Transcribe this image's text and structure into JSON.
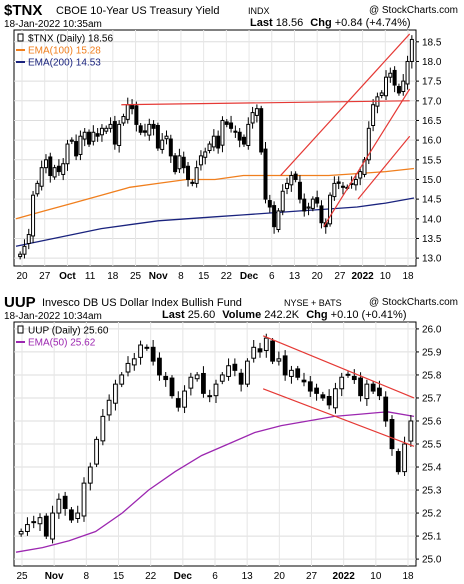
{
  "panels": [
    {
      "symbol": "$TNX",
      "name": "CBOE 10-Year US Treasury Yield",
      "exchange": "INDX",
      "date": "18-Jan-2022 10:35am",
      "watermark": "@ StockCharts.com",
      "last_label": "Last",
      "last": "18.56",
      "chg_label": "Chg",
      "chg": "+0.84 (+4.74%)",
      "legend": [
        {
          "text": "$TNX (Daily) 18.56",
          "color": "#000000",
          "kind": "marker"
        },
        {
          "text": "EMA(100) 15.28",
          "color": "#f07f1e",
          "kind": "line"
        },
        {
          "text": "EMA(200) 14.53",
          "color": "#1a237e",
          "kind": "line"
        }
      ],
      "y_ticks": [
        "18.5",
        "18.0",
        "17.5",
        "17.0",
        "16.5",
        "16.0",
        "15.5",
        "15.0",
        "14.5",
        "14.0",
        "13.5",
        "13.0"
      ],
      "x_ticks": [
        "20",
        "27",
        "Oct",
        "11",
        "18",
        "25",
        "Nov",
        "8",
        "15",
        "22",
        "Dec",
        "6",
        "13",
        "20",
        "27",
        "2022",
        "10",
        "18"
      ]
    },
    {
      "symbol": "UUP",
      "name": "Invesco DB US Dollar Index Bullish Fund",
      "exchange": "NYSE + BATS",
      "date": "18-Jan-2022 10:34am",
      "watermark": "@ StockCharts.com",
      "last_label": "Last",
      "last": "25.60",
      "volume_label": "Volume",
      "volume": "242.2K",
      "chg_label": "Chg",
      "chg": "+0.10 (+0.41%)",
      "legend": [
        {
          "text": "UUP (Daily) 25.60",
          "color": "#000000",
          "kind": "marker"
        },
        {
          "text": "EMA(50) 25.62",
          "color": "#9c27b0",
          "kind": "line"
        }
      ],
      "y_ticks": [
        "26.0",
        "25.9",
        "25.8",
        "25.7",
        "25.6",
        "25.5",
        "25.4",
        "25.3",
        "25.2",
        "25.1",
        "25.0"
      ],
      "x_ticks": [
        "25",
        "Nov",
        "8",
        "15",
        "22",
        "Dec",
        "6",
        "13",
        "20",
        "27",
        "2022",
        "10",
        "18"
      ]
    }
  ],
  "chart_data": [
    {
      "type": "candlestick",
      "title": "$TNX CBOE 10-Year US Treasury Yield INDX",
      "ylim": [
        12.8,
        18.8
      ],
      "series": [
        {
          "name": "$TNX (Daily)",
          "close": [
            13.1,
            13.3,
            13.6,
            14.6,
            14.9,
            15.3,
            15.5,
            15.1,
            15.3,
            15.2,
            15.4,
            15.9,
            16.0,
            15.6,
            16.1,
            16.2,
            15.9,
            16.2,
            16.1,
            16.3,
            16.3,
            16.4,
            15.9,
            16.4,
            16.6,
            16.9,
            16.8,
            16.4,
            16.2,
            16.2,
            16.4,
            16.3,
            15.8,
            16.0,
            16.1,
            15.6,
            15.2,
            15.6,
            15.3,
            15.0,
            14.9,
            15.3,
            15.6,
            15.7,
            15.9,
            16.1,
            15.8,
            16.5,
            16.4,
            16.3,
            16.2,
            16.0,
            15.9,
            16.4,
            16.7,
            16.8,
            15.7,
            14.5,
            14.3,
            13.8,
            14.2,
            14.7,
            14.9,
            15.1,
            15.0,
            14.5,
            14.2,
            14.3,
            14.5,
            14.4,
            13.9,
            13.8,
            14.6,
            14.9,
            14.9,
            14.8,
            14.8,
            14.9,
            15.0,
            15.2,
            15.5,
            16.3,
            16.9,
            17.1,
            17.2,
            17.6,
            17.7,
            17.4,
            17.2,
            17.5,
            18.0,
            18.56
          ]
        },
        {
          "name": "EMA(100)",
          "values": [
            14.0,
            14.2,
            14.4,
            14.6,
            14.8,
            14.9,
            15.0,
            15.0,
            15.1,
            15.1,
            15.1,
            15.1,
            15.15,
            15.2,
            15.28
          ]
        },
        {
          "name": "EMA(200)",
          "values": [
            13.3,
            13.45,
            13.6,
            13.75,
            13.85,
            13.95,
            14.0,
            14.05,
            14.1,
            14.15,
            14.2,
            14.25,
            14.3,
            14.4,
            14.53
          ]
        }
      ]
    },
    {
      "type": "candlestick",
      "title": "UUP Invesco DB US Dollar Index Bullish Fund NYSE + BATS",
      "ylim": [
        24.97,
        26.03
      ],
      "series": [
        {
          "name": "UUP (Daily)",
          "close": [
            25.12,
            25.15,
            25.16,
            25.18,
            25.1,
            25.2,
            25.26,
            25.22,
            25.17,
            25.2,
            25.33,
            25.4,
            25.52,
            25.62,
            25.69,
            25.76,
            25.8,
            25.85,
            25.87,
            25.93,
            25.92,
            25.86,
            25.8,
            25.78,
            25.71,
            25.66,
            25.73,
            25.79,
            25.8,
            25.72,
            25.71,
            25.76,
            25.8,
            25.84,
            25.82,
            25.76,
            25.86,
            25.92,
            25.9,
            25.96,
            25.86,
            25.87,
            25.8,
            25.82,
            25.79,
            25.77,
            25.73,
            25.72,
            25.7,
            25.67,
            25.74,
            25.79,
            25.8,
            25.78,
            25.71,
            25.76,
            25.73,
            25.71,
            25.6,
            25.48,
            25.38,
            25.5,
            25.6
          ]
        },
        {
          "name": "EMA(50)",
          "values": [
            25.03,
            25.05,
            25.08,
            25.12,
            25.2,
            25.3,
            25.38,
            25.45,
            25.5,
            25.55,
            25.58,
            25.6,
            25.62,
            25.63,
            25.64,
            25.62
          ]
        }
      ]
    }
  ]
}
